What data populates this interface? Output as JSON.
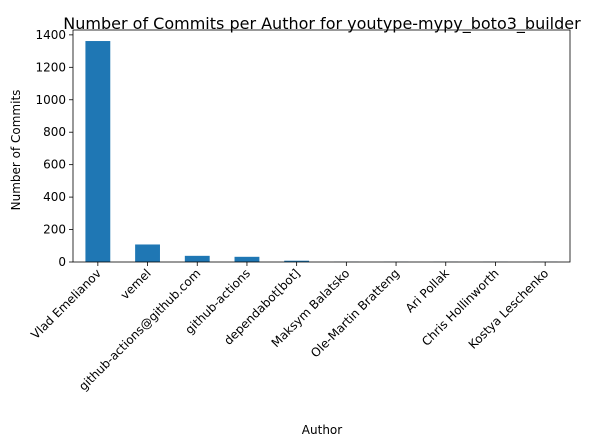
{
  "chart_data": {
    "type": "bar",
    "title": "Number of Commits per Author for youtype-mypy_boto3_builder",
    "xlabel": "Author",
    "ylabel": "Number of Commits",
    "categories": [
      "Vlad Emelianov",
      "vemel",
      "github-actions@github.com",
      "github-actions",
      "dependabot[bot]",
      "Maksym Balatsko",
      "Ole-Martin Bratteng",
      "Ari Pollak",
      "Chris Hollinworth",
      "Kostya Leschenko"
    ],
    "values": [
      1362,
      108,
      38,
      32,
      8,
      1,
      1,
      1,
      1,
      1
    ],
    "ylim": [
      0,
      1430
    ],
    "yticks": [
      0,
      200,
      400,
      600,
      800,
      1000,
      1200,
      1400
    ],
    "bar_color": "#1f77b4",
    "grid": false,
    "legend": "none"
  }
}
